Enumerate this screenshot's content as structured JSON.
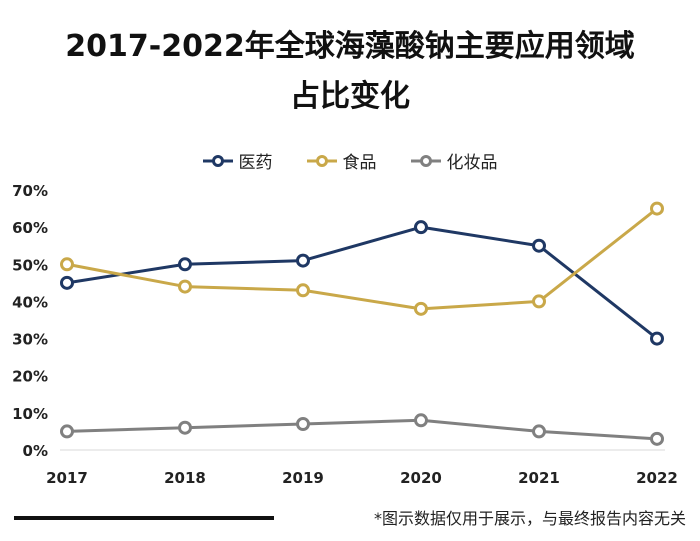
{
  "chart_data": {
    "type": "line",
    "title_line1": "2017-2022年全球海藻酸钠主要应用领域",
    "title_line2": "占比变化",
    "categories": [
      "2017",
      "2018",
      "2019",
      "2020",
      "2021",
      "2022"
    ],
    "series": [
      {
        "name": "医药",
        "color": "#1f3864",
        "values": [
          45,
          50,
          51,
          60,
          55,
          30
        ]
      },
      {
        "name": "食品",
        "color": "#c9a849",
        "values": [
          50,
          44,
          43,
          38,
          40,
          65
        ]
      },
      {
        "name": "化妆品",
        "color": "#808080",
        "values": [
          5,
          6,
          7,
          8,
          5,
          3
        ]
      }
    ],
    "ylim": [
      0,
      70
    ],
    "yticks": [
      "0%",
      "10%",
      "20%",
      "30%",
      "40%",
      "50%",
      "60%",
      "70%"
    ],
    "grid": false,
    "legend_position": "top"
  },
  "footnote": "*图示数据仅用于展示，与最终报告内容无关"
}
